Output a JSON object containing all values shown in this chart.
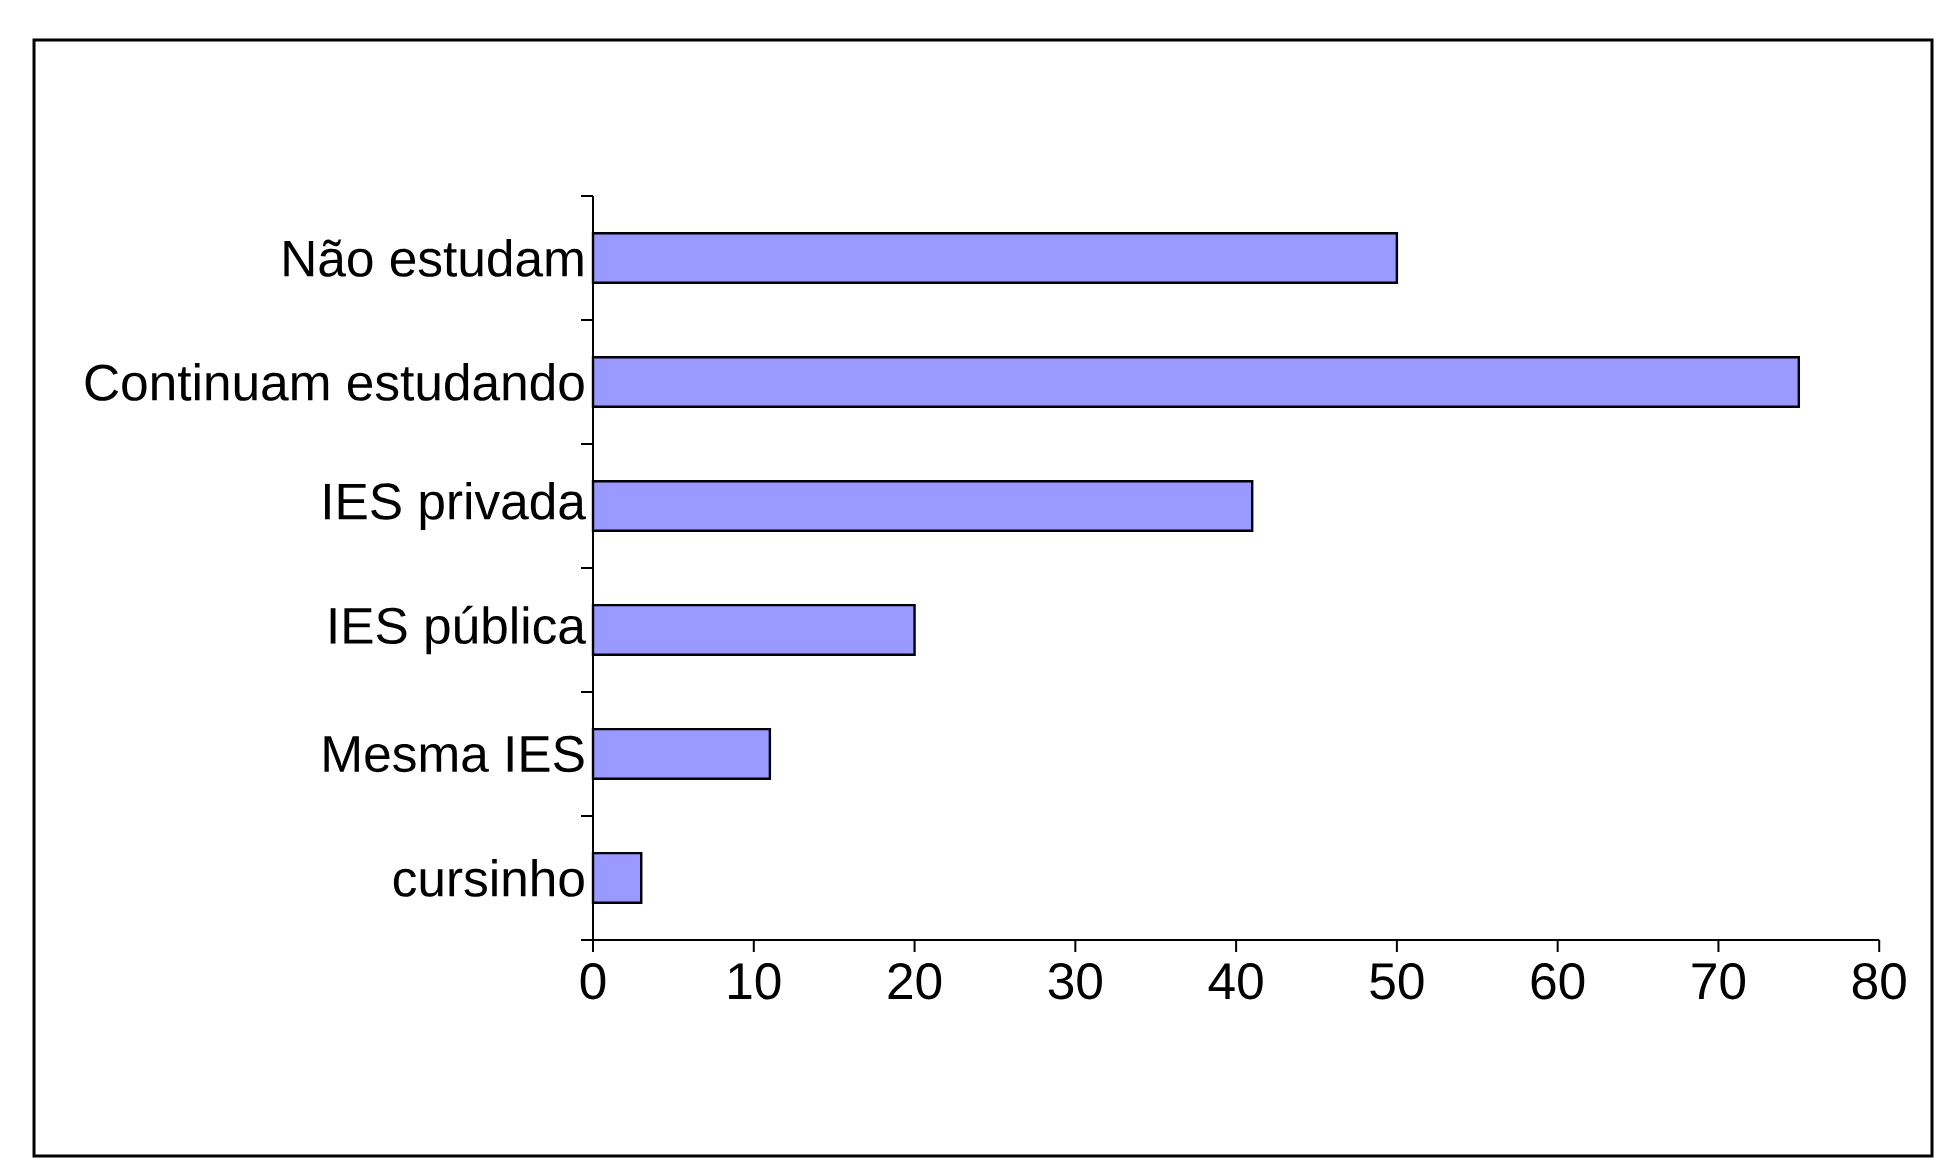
{
  "chart_data": {
    "type": "bar",
    "orientation": "horizontal",
    "categories": [
      "Não estudam",
      "Continuam estudando",
      "IES privada",
      "IES pública",
      "Mesma IES",
      "cursinho"
    ],
    "values": [
      50,
      75,
      41,
      20,
      11,
      3
    ],
    "color": "#9999ff",
    "xlim": [
      0,
      80
    ],
    "xticks": [
      0,
      10,
      20,
      30,
      40,
      50,
      60,
      70,
      80
    ]
  }
}
